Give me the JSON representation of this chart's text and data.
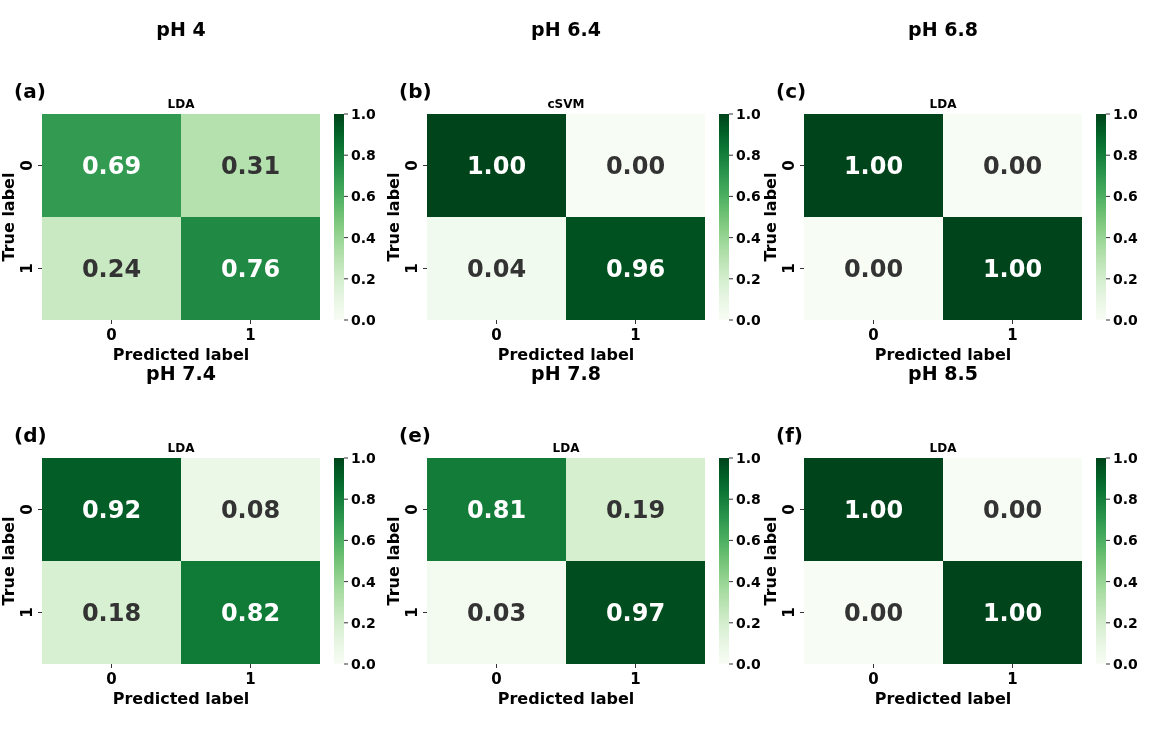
{
  "chart_data": [
    {
      "type": "heatmap",
      "title": "pH 4",
      "subtitle": "LDA",
      "annotations": [
        "(a)"
      ],
      "xlabel": "Predicted label",
      "ylabel": "True label",
      "categories": [
        "0",
        "1"
      ],
      "y_categories": [
        "0",
        "1"
      ],
      "cells": [
        [
          0.69,
          0.31
        ],
        [
          0.24,
          0.76
        ]
      ],
      "cell_labels": [
        [
          "0.69",
          "0.31"
        ],
        [
          "0.24",
          "0.76"
        ]
      ],
      "clim": [
        0,
        1
      ],
      "cticks": [
        {
          "value": 0,
          "label": "0.0"
        },
        {
          "value": 0.2,
          "label": "0.2"
        },
        {
          "value": 0.4,
          "label": "0.4"
        },
        {
          "value": 0.6,
          "label": "0.6"
        },
        {
          "value": 0.8,
          "label": "0.8"
        },
        {
          "value": 1,
          "label": "1.0"
        }
      ]
    },
    {
      "type": "heatmap",
      "title": "pH 6.4",
      "subtitle": "cSVM",
      "annotations": [
        "(b)"
      ],
      "xlabel": "Predicted label",
      "ylabel": "True label",
      "categories": [
        "0",
        "1"
      ],
      "y_categories": [
        "0",
        "1"
      ],
      "cells": [
        [
          1,
          0
        ],
        [
          0.04,
          0.96
        ]
      ],
      "cell_labels": [
        [
          "1.00",
          "0.00"
        ],
        [
          "0.04",
          "0.96"
        ]
      ],
      "clim": [
        0,
        1
      ],
      "cticks": [
        {
          "value": 0,
          "label": "0.0"
        },
        {
          "value": 0.2,
          "label": "0.2"
        },
        {
          "value": 0.4,
          "label": "0.4"
        },
        {
          "value": 0.6,
          "label": "0.6"
        },
        {
          "value": 0.8,
          "label": "0.8"
        },
        {
          "value": 1,
          "label": "1.0"
        }
      ]
    },
    {
      "type": "heatmap",
      "title": "pH 6.8",
      "subtitle": "LDA",
      "annotations": [
        "(c)"
      ],
      "xlabel": "Predicted label",
      "ylabel": "True label",
      "categories": [
        "0",
        "1"
      ],
      "y_categories": [
        "0",
        "1"
      ],
      "cells": [
        [
          1,
          0
        ],
        [
          0,
          1
        ]
      ],
      "cell_labels": [
        [
          "1.00",
          "0.00"
        ],
        [
          "0.00",
          "1.00"
        ]
      ],
      "clim": [
        0,
        1
      ],
      "cticks": [
        {
          "value": 0,
          "label": "0.0"
        },
        {
          "value": 0.2,
          "label": "0.2"
        },
        {
          "value": 0.4,
          "label": "0.4"
        },
        {
          "value": 0.6,
          "label": "0.6"
        },
        {
          "value": 0.8,
          "label": "0.8"
        },
        {
          "value": 1,
          "label": "1.0"
        }
      ]
    },
    {
      "type": "heatmap",
      "title": "pH 7.4",
      "subtitle": "LDA",
      "annotations": [
        "(d)"
      ],
      "xlabel": "Predicted label",
      "ylabel": "True label",
      "categories": [
        "0",
        "1"
      ],
      "y_categories": [
        "0",
        "1"
      ],
      "cells": [
        [
          0.92,
          0.08
        ],
        [
          0.18,
          0.82
        ]
      ],
      "cell_labels": [
        [
          "0.92",
          "0.08"
        ],
        [
          "0.18",
          "0.82"
        ]
      ],
      "clim": [
        0,
        1
      ],
      "cticks": [
        {
          "value": 0,
          "label": "0.0"
        },
        {
          "value": 0.2,
          "label": "0.2"
        },
        {
          "value": 0.4,
          "label": "0.4"
        },
        {
          "value": 0.6,
          "label": "0.6"
        },
        {
          "value": 0.8,
          "label": "0.8"
        },
        {
          "value": 1,
          "label": "1.0"
        }
      ]
    },
    {
      "type": "heatmap",
      "title": "pH 7.8",
      "subtitle": "LDA",
      "annotations": [
        "(e)"
      ],
      "xlabel": "Predicted label",
      "ylabel": "True label",
      "categories": [
        "0",
        "1"
      ],
      "y_categories": [
        "0",
        "1"
      ],
      "cells": [
        [
          0.81,
          0.19
        ],
        [
          0.03,
          0.97
        ]
      ],
      "cell_labels": [
        [
          "0.81",
          "0.19"
        ],
        [
          "0.03",
          "0.97"
        ]
      ],
      "clim": [
        0,
        1
      ],
      "cticks": [
        {
          "value": 0,
          "label": "0.0"
        },
        {
          "value": 0.2,
          "label": "0.2"
        },
        {
          "value": 0.4,
          "label": "0.4"
        },
        {
          "value": 0.6,
          "label": "0.6"
        },
        {
          "value": 0.8,
          "label": "0.8"
        },
        {
          "value": 1,
          "label": "1.0"
        }
      ]
    },
    {
      "type": "heatmap",
      "title": "pH 8.5",
      "subtitle": "LDA",
      "annotations": [
        "(f)"
      ],
      "xlabel": "Predicted label",
      "ylabel": "True label",
      "categories": [
        "0",
        "1"
      ],
      "y_categories": [
        "0",
        "1"
      ],
      "cells": [
        [
          1,
          0
        ],
        [
          0,
          1
        ]
      ],
      "cell_labels": [
        [
          "1.00",
          "0.00"
        ],
        [
          "0.00",
          "1.00"
        ]
      ],
      "clim": [
        0,
        1
      ],
      "cticks": [
        {
          "value": 0,
          "label": "0.0"
        },
        {
          "value": 0.2,
          "label": "0.2"
        },
        {
          "value": 0.4,
          "label": "0.4"
        },
        {
          "value": 0.6,
          "label": "0.6"
        },
        {
          "value": 0.8,
          "label": "0.8"
        },
        {
          "value": 1,
          "label": "1.0"
        }
      ]
    }
  ]
}
